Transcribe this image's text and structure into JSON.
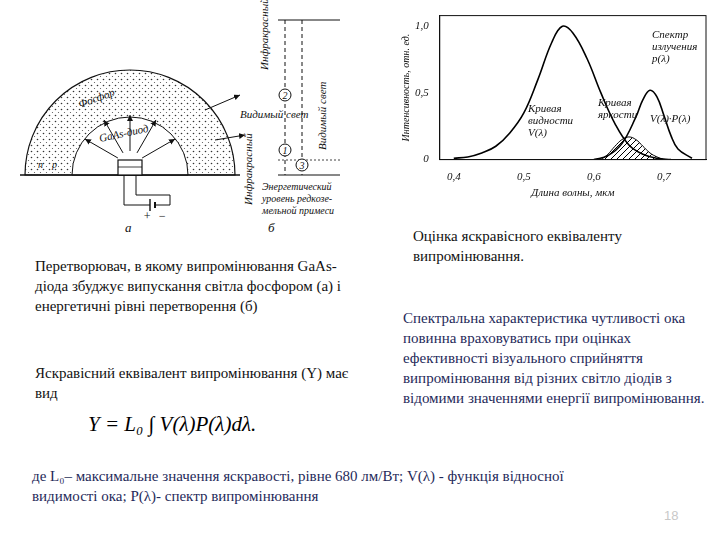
{
  "diagram": {
    "a": {
      "phosphor": "Фосфор",
      "diode": "GaAs-диод",
      "visible": "Видимый свет",
      "p": "p",
      "n": "n",
      "plus": "+",
      "minus": "−",
      "caption": "a"
    },
    "b": {
      "infrared_1": "Инфракрасный",
      "infrared_2": "Инфракрасный",
      "visible": "Видимый свет",
      "levels": [
        "1",
        "2",
        "3"
      ],
      "level_note": [
        "Энергетический",
        "уровень редкозе-",
        "мельной примеси"
      ],
      "caption": "б"
    }
  },
  "captions": {
    "left": "Перетворювач, в якому випромінювання GaAs-діода збуджує випускання світла фосфором (а) і енергетичні рівні перетворення (б)",
    "formula_intro": "Яскравісний еквівалент випромінювання (Y) має вид",
    "formula": "Y = L₀ ∫ V(λ)P(λ)dλ.",
    "middle": "Оцінка яскравісного еквіваленту випромінювання.",
    "right": "Спектральна характеристика чутливості ока повинна враховуватись при оцінках ефективності візуального сприйняття випромінювання від різних світло діодів з відомими значеннями енергії випромінювання.",
    "footer": "де L₀– максимальне значення яскравості, рівне 680 лм/Вт; V(λ) - функція відносної видимості ока; P(λ)- спектр випромінювання",
    "page": "18"
  },
  "chart_data": {
    "type": "line",
    "x_label": "Длина волны, мкм",
    "y_label": "Интенсивность, отн. ед.",
    "xlim": [
      0.38,
      0.76
    ],
    "ylim": [
      0,
      1.08
    ],
    "xticks": [
      {
        "value": 0.4,
        "label": "0,4"
      },
      {
        "value": 0.5,
        "label": "0,5"
      },
      {
        "value": 0.6,
        "label": "0,6"
      },
      {
        "value": 0.7,
        "label": "0,7"
      }
    ],
    "yticks": [
      0,
      {
        "value": 0.5,
        "label": "0,5"
      },
      {
        "value": 1.0,
        "label": "1,0"
      }
    ],
    "grid": false,
    "annotations": [
      "V(λ)·P(λ)"
    ],
    "series": [
      {
        "name": "Кривая видности V(λ)",
        "type": "line",
        "color": "#000000",
        "x": [
          0.4,
          0.42,
          0.44,
          0.46,
          0.48,
          0.5,
          0.52,
          0.54,
          0.555,
          0.57,
          0.59,
          0.61,
          0.63,
          0.65,
          0.67,
          0.69,
          0.71
        ],
        "values": [
          0.01,
          0.02,
          0.05,
          0.1,
          0.2,
          0.35,
          0.6,
          0.88,
          1.0,
          0.95,
          0.76,
          0.5,
          0.27,
          0.11,
          0.04,
          0.01,
          0.0
        ]
      },
      {
        "name": "Спектр излучения p(λ)",
        "type": "line",
        "color": "#000000",
        "x": [
          0.6,
          0.62,
          0.64,
          0.66,
          0.67,
          0.68,
          0.69,
          0.7,
          0.71,
          0.72,
          0.74
        ],
        "values": [
          0.0,
          0.03,
          0.12,
          0.32,
          0.45,
          0.52,
          0.47,
          0.33,
          0.18,
          0.08,
          0.01
        ]
      },
      {
        "name": "Кривая яркости",
        "type": "area",
        "color": "#000000",
        "x": [
          0.61,
          0.62,
          0.63,
          0.64,
          0.65,
          0.66,
          0.67,
          0.68,
          0.69,
          0.7
        ],
        "values": [
          0.0,
          0.04,
          0.1,
          0.15,
          0.17,
          0.15,
          0.1,
          0.05,
          0.02,
          0.0
        ]
      }
    ]
  }
}
